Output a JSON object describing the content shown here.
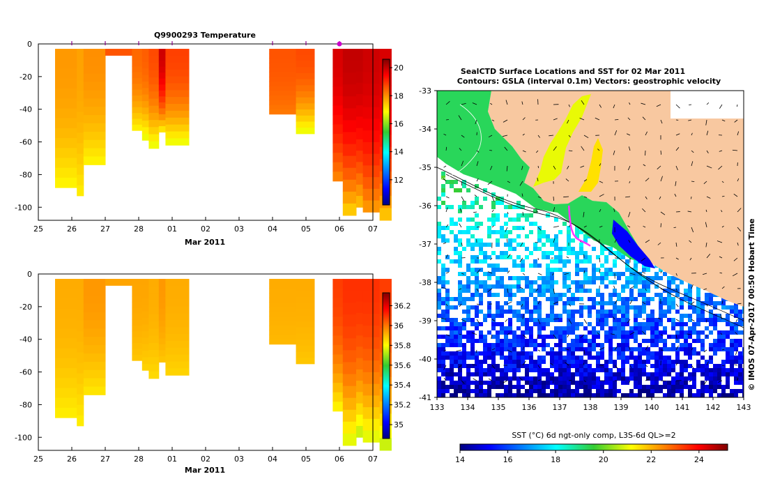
{
  "colors": {
    "land": "#f8c8a0",
    "vertical_line": "#880088",
    "marker": "#cc00cc",
    "track": "#ff33ff"
  },
  "chart_data": [
    {
      "type": "heatmap",
      "title": "Q9900293  Temperature",
      "xlabel": "Mar 2011",
      "x_ticks": [
        "25",
        "26",
        "27",
        "28",
        "01",
        "02",
        "03",
        "04",
        "05",
        "06",
        "07"
      ],
      "xlim": [
        25,
        35
      ],
      "ylim": [
        -108,
        0
      ],
      "y_ticks": [
        "0",
        "-20",
        "-40",
        "-60",
        "-80",
        "-100"
      ],
      "colorbar": {
        "min": 10.2,
        "max": 20.6,
        "ticks": [
          "12",
          "14",
          "16",
          "18",
          "20"
        ]
      },
      "profile_times": [
        26.0,
        27.0,
        28.0,
        29.0,
        32.0,
        33.0,
        34.0
      ],
      "profiles": [
        {
          "x0": 25.5,
          "x1": 26.15,
          "bottom": -88,
          "surf": 17.9,
          "deep": 16.9
        },
        {
          "x0": 26.15,
          "x1": 26.35,
          "bottom": -93,
          "surf": 17.8,
          "deep": 17.0
        },
        {
          "x0": 26.35,
          "x1": 27.0,
          "bottom": -74,
          "surf": 18.0,
          "deep": 16.9
        },
        {
          "x0": 27.0,
          "x1": 27.8,
          "bottom": -7,
          "surf": 18.6,
          "deep": 18.6
        },
        {
          "x0": 27.8,
          "x1": 28.1,
          "bottom": -53,
          "surf": 18.4,
          "deep": 16.9
        },
        {
          "x0": 28.1,
          "x1": 28.3,
          "bottom": -59,
          "surf": 18.5,
          "deep": 16.6
        },
        {
          "x0": 28.3,
          "x1": 28.6,
          "bottom": -64,
          "surf": 18.7,
          "deep": 16.6
        },
        {
          "x0": 28.6,
          "x1": 28.8,
          "bottom": -54,
          "surf": 19.9,
          "deep": 16.9
        },
        {
          "x0": 28.8,
          "x1": 29.5,
          "bottom": -62,
          "surf": 18.8,
          "deep": 16.6
        },
        {
          "x0": 31.9,
          "x1": 32.7,
          "bottom": -43,
          "surf": 18.6,
          "deep": 18.2
        },
        {
          "x0": 32.7,
          "x1": 33.25,
          "bottom": -55,
          "surf": 18.7,
          "deep": 16.6
        },
        {
          "x0": 33.8,
          "x1": 34.1,
          "bottom": -84,
          "surf": 19.8,
          "deep": 18.0
        },
        {
          "x0": 34.1,
          "x1": 34.5,
          "bottom": -105,
          "surf": 20.0,
          "deep": 17.2
        },
        {
          "x0": 34.5,
          "x1": 34.7,
          "bottom": -100,
          "surf": 20.0,
          "deep": 17.4
        },
        {
          "x0": 34.7,
          "x1": 35.2,
          "bottom": -103,
          "surf": 19.9,
          "deep": 17.8
        },
        {
          "x0": 35.2,
          "x1": 35.55,
          "bottom": -108,
          "surf": 19.8,
          "deep": 17.3
        }
      ]
    },
    {
      "type": "heatmap",
      "title": "",
      "xlabel": "Mar 2011",
      "x_ticks": [
        "25",
        "26",
        "27",
        "28",
        "01",
        "02",
        "03",
        "04",
        "05",
        "06",
        "07"
      ],
      "xlim": [
        25,
        35
      ],
      "ylim": [
        -108,
        0
      ],
      "y_ticks": [
        "0",
        "-20",
        "-40",
        "-60",
        "-80",
        "-100"
      ],
      "colorbar": {
        "min": 34.86,
        "max": 36.33,
        "ticks": [
          "35",
          "35.2",
          "35.4",
          "35.6",
          "35.8",
          "36",
          "36.2"
        ]
      },
      "profiles": [
        {
          "x0": 25.5,
          "x1": 26.15,
          "bottom": -88,
          "surf": 35.92,
          "deep": 35.82
        },
        {
          "x0": 26.15,
          "x1": 26.35,
          "bottom": -93,
          "surf": 35.92,
          "deep": 35.82
        },
        {
          "x0": 26.35,
          "x1": 27.0,
          "bottom": -74,
          "surf": 35.95,
          "deep": 35.83
        },
        {
          "x0": 27.0,
          "x1": 27.8,
          "bottom": -7,
          "surf": 35.93,
          "deep": 35.93
        },
        {
          "x0": 27.8,
          "x1": 28.1,
          "bottom": -53,
          "surf": 35.93,
          "deep": 35.88
        },
        {
          "x0": 28.1,
          "x1": 28.3,
          "bottom": -59,
          "surf": 35.93,
          "deep": 35.86
        },
        {
          "x0": 28.3,
          "x1": 28.6,
          "bottom": -64,
          "surf": 35.92,
          "deep": 35.85
        },
        {
          "x0": 28.6,
          "x1": 28.8,
          "bottom": -54,
          "surf": 35.95,
          "deep": 35.88
        },
        {
          "x0": 28.8,
          "x1": 29.5,
          "bottom": -62,
          "surf": 35.92,
          "deep": 35.86
        },
        {
          "x0": 31.9,
          "x1": 32.7,
          "bottom": -43,
          "surf": 35.92,
          "deep": 35.9
        },
        {
          "x0": 32.7,
          "x1": 33.25,
          "bottom": -55,
          "surf": 35.92,
          "deep": 35.88
        },
        {
          "x0": 33.8,
          "x1": 34.1,
          "bottom": -84,
          "surf": 36.08,
          "deep": 35.8
        },
        {
          "x0": 34.1,
          "x1": 34.5,
          "bottom": -105,
          "surf": 36.1,
          "deep": 35.75
        },
        {
          "x0": 34.5,
          "x1": 34.7,
          "bottom": -100,
          "surf": 36.1,
          "deep": 35.72
        },
        {
          "x0": 34.7,
          "x1": 35.2,
          "bottom": -103,
          "surf": 36.1,
          "deep": 35.75
        },
        {
          "x0": 35.2,
          "x1": 35.55,
          "bottom": -108,
          "surf": 36.08,
          "deep": 35.72
        }
      ]
    },
    {
      "type": "heatmap",
      "title_line1": "SealCTD Surface Locations and SST for 02 Mar 2011",
      "title_line2": "Contours: GSLA (interval 0.1m) Vectors: geostrophic velocity",
      "xlim": [
        133,
        143
      ],
      "ylim": [
        -41,
        -33
      ],
      "x_ticks": [
        "133",
        "134",
        "135",
        "136",
        "137",
        "138",
        "139",
        "140",
        "141",
        "142",
        "143"
      ],
      "y_ticks": [
        "-33",
        "-34",
        "-35",
        "-36",
        "-37",
        "-38",
        "-39",
        "-40",
        "-41"
      ],
      "side_label": "© IMOS 07-Apr-2017 00:50 Hobart Time",
      "colorbar": {
        "label": "SST (°C) 6d ngt-only comp, L3S-6d QL>=2",
        "min": 14,
        "max": 25.2,
        "ticks": [
          "14",
          "16",
          "18",
          "20",
          "22",
          "24"
        ]
      },
      "track_lon": [
        137.3,
        137.32,
        137.35,
        137.38,
        137.45,
        137.55,
        137.65,
        137.78,
        137.9,
        138.0
      ],
      "track_lat": [
        -36.0,
        -36.25,
        -36.45,
        -36.6,
        -36.75,
        -36.85,
        -36.9,
        -36.95,
        -37.0,
        -37.05
      ]
    }
  ]
}
